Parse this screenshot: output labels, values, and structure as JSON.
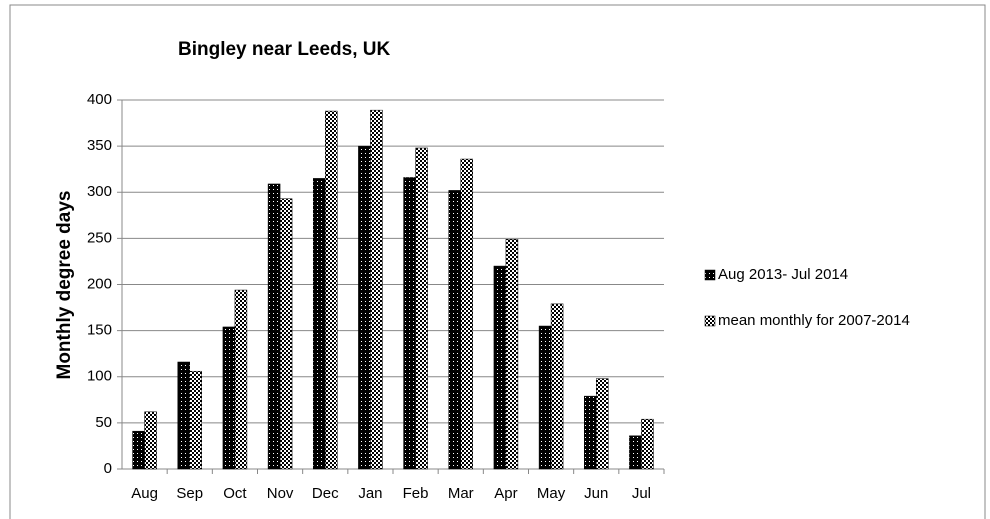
{
  "chart_data": {
    "type": "bar",
    "title": "Bingley near Leeds, UK",
    "y_label": "Monthly degree days",
    "categories": [
      "Aug",
      "Sep",
      "Oct",
      "Nov",
      "Dec",
      "Jan",
      "Feb",
      "Mar",
      "Apr",
      "May",
      "Jun",
      "Jul"
    ],
    "series": [
      {
        "name": "Aug 2013- Jul 2014",
        "color": "#000000",
        "values": [
          41,
          116,
          154,
          309,
          315,
          350,
          316,
          302,
          220,
          155,
          79,
          36
        ]
      },
      {
        "name": "mean monthly for 2007-2014",
        "color": "#000000",
        "values": [
          62,
          106,
          194,
          293,
          388,
          389,
          348,
          336,
          249,
          179,
          98,
          54
        ]
      }
    ],
    "ylim": [
      0,
      400
    ],
    "yticks": [
      0,
      50,
      100,
      150,
      200,
      250,
      300,
      350,
      400
    ],
    "grid": true,
    "legend": "right"
  }
}
